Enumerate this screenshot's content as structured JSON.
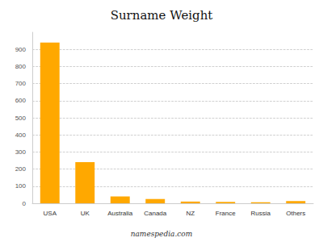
{
  "chart_data": {
    "type": "bar",
    "title": "Surname Weight",
    "categories": [
      "USA",
      "UK",
      "Australia",
      "Canada",
      "NZ",
      "France",
      "Russia",
      "Others"
    ],
    "values": [
      940,
      240,
      40,
      25,
      10,
      8,
      6,
      13
    ],
    "color": "#FFA800",
    "ylim": [
      0,
      1000
    ],
    "yticks": [
      0,
      100,
      200,
      300,
      400,
      500,
      600,
      700,
      800,
      900
    ],
    "grid": true,
    "annotation": "namespedia.com"
  }
}
